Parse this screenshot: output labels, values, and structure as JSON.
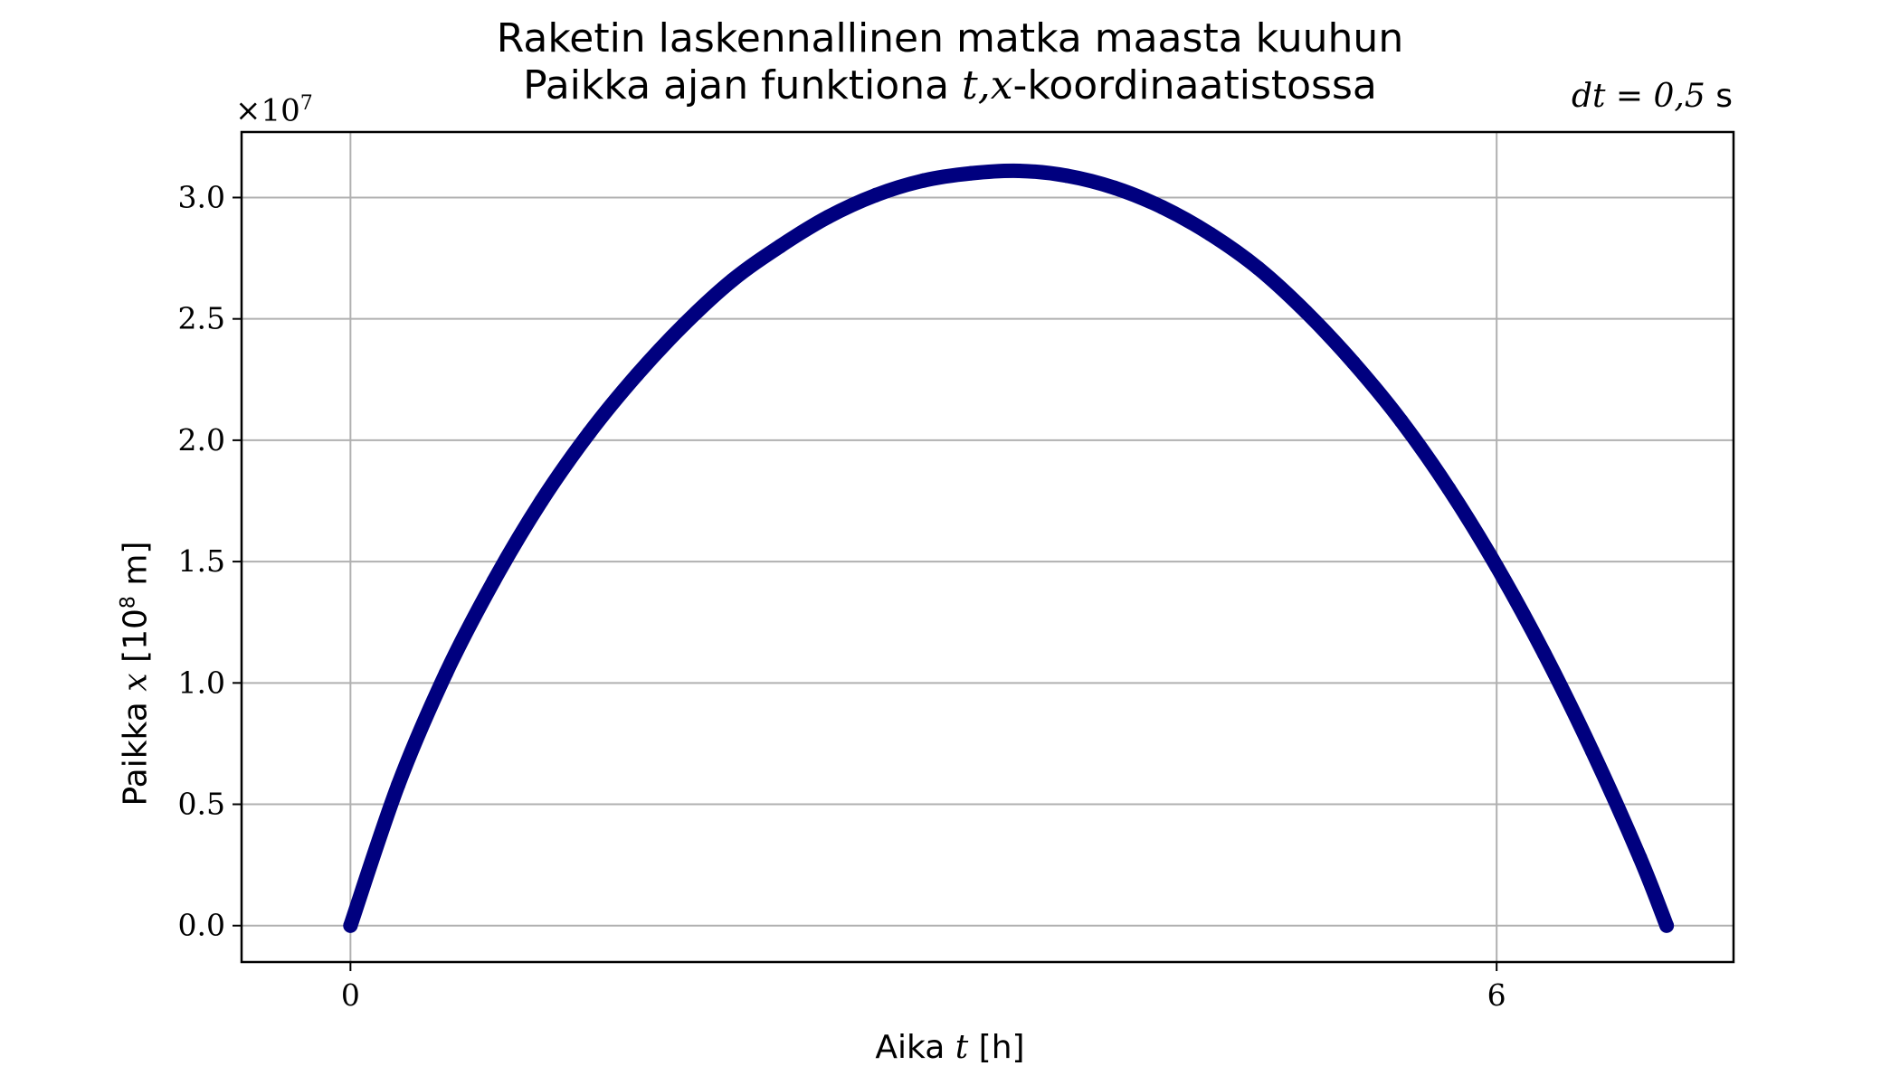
{
  "chart_data": {
    "type": "line",
    "title": "Raketin laskennallinen matka maasta kuuhun",
    "subtitle_pre": "Paikka ajan funktiona ",
    "subtitle_math": "t,x",
    "subtitle_post": "-koordinaatistossa",
    "annotation": {
      "math": "dt = 0,5",
      "unit": " s",
      "placement": "top-right"
    },
    "xlabel": {
      "pre": "Aika ",
      "math": "t",
      "post": " [h]"
    },
    "ylabel": {
      "pre": "Paikka ",
      "math": "x",
      "bracket_open": " [10",
      "exp": "8",
      "post": " m]"
    },
    "y_offset": {
      "base": "×10",
      "exp": "7"
    },
    "xlim": [
      -0.57,
      7.24
    ],
    "ylim": [
      -0.15,
      3.27
    ],
    "xticks": [
      {
        "value": 0,
        "label": "0"
      },
      {
        "value": 6,
        "label": "6"
      }
    ],
    "yticks": [
      {
        "value": 0.0,
        "label": "0.0"
      },
      {
        "value": 0.5,
        "label": "0.5"
      },
      {
        "value": 1.0,
        "label": "1.0"
      },
      {
        "value": 1.5,
        "label": "1.5"
      },
      {
        "value": 2.0,
        "label": "2.0"
      },
      {
        "value": 2.5,
        "label": "2.5"
      },
      {
        "value": 3.0,
        "label": "3.0"
      }
    ],
    "grid": true,
    "color": "#00007f",
    "series": [
      {
        "x": [
          0.0,
          0.25,
          0.5,
          0.75,
          1.0,
          1.25,
          1.5,
          1.75,
          2.0,
          2.25,
          2.5,
          2.75,
          3.0,
          3.25,
          3.5,
          3.75,
          4.0,
          4.25,
          4.5,
          4.75,
          5.0,
          5.25,
          5.5,
          5.75,
          6.0,
          6.25,
          6.5,
          6.75,
          6.89
        ],
        "y": [
          0.0,
          0.58,
          1.04,
          1.42,
          1.75,
          2.03,
          2.27,
          2.48,
          2.66,
          2.8,
          2.92,
          3.01,
          3.07,
          3.1,
          3.11,
          3.09,
          3.04,
          2.96,
          2.85,
          2.71,
          2.53,
          2.32,
          2.08,
          1.8,
          1.48,
          1.12,
          0.72,
          0.28,
          0.0
        ]
      }
    ]
  }
}
